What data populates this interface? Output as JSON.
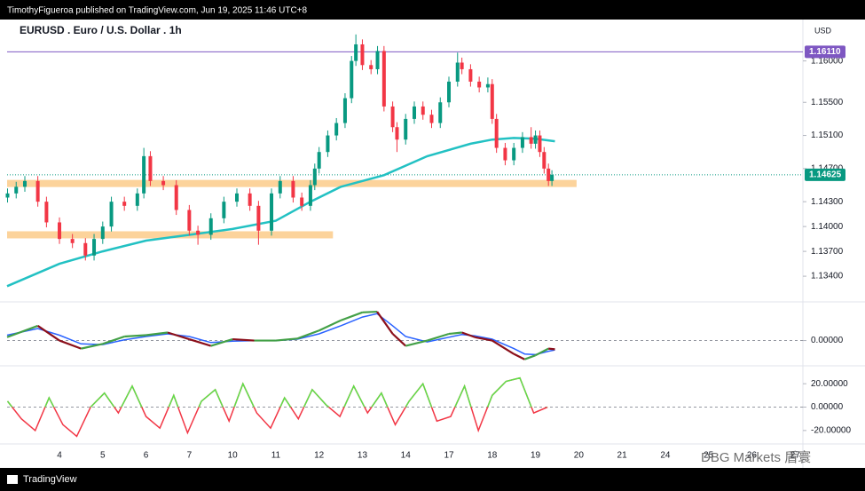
{
  "header": "TimothyFigueroa published on TradingView.com, Jun 19, 2025 11:46 UTC+8",
  "footer": "TradingView",
  "watermark": "DBG Markets 盾寰",
  "chart_data": [
    {
      "type": "candlestick",
      "title": "EURUSD . Euro / U.S. Dollar . 1h",
      "currency": "USD",
      "xlim": [
        -1.21,
        17.18
      ],
      "xticks": [
        {
          "value": 0,
          "label": "4"
        },
        {
          "value": 1,
          "label": "5"
        },
        {
          "value": 2,
          "label": "6"
        },
        {
          "value": 3,
          "label": "7"
        },
        {
          "value": 4,
          "label": "10"
        },
        {
          "value": 5,
          "label": "11"
        },
        {
          "value": 6,
          "label": "12"
        },
        {
          "value": 7,
          "label": "13"
        },
        {
          "value": 8,
          "label": "14"
        },
        {
          "value": 9,
          "label": "17"
        },
        {
          "value": 10,
          "label": "18"
        },
        {
          "value": 11,
          "label": "19"
        },
        {
          "value": 12,
          "label": "20"
        },
        {
          "value": 13,
          "label": "21"
        },
        {
          "value": 14,
          "label": "24"
        },
        {
          "value": 15,
          "label": "25"
        },
        {
          "value": 16,
          "label": "26"
        },
        {
          "value": 17,
          "label": "27"
        }
      ],
      "ylim": [
        1.1309,
        1.165
      ],
      "yticks": [
        {
          "value": 1.16,
          "label": "1.16000"
        },
        {
          "value": 1.155,
          "label": "1.15500"
        },
        {
          "value": 1.151,
          "label": "1.15100"
        },
        {
          "value": 1.147,
          "label": "1.14700"
        },
        {
          "value": 1.143,
          "label": "1.14300"
        },
        {
          "value": 1.14,
          "label": "1.14000"
        },
        {
          "value": 1.137,
          "label": "1.13700"
        },
        {
          "value": 1.134,
          "label": "1.13400"
        }
      ],
      "up_color": "#089981",
      "down_color": "#f23645",
      "x": [
        -1.2,
        -1.0,
        -0.8,
        -0.5,
        -0.3,
        0.0,
        0.3,
        0.6,
        0.8,
        1.0,
        1.2,
        1.5,
        1.8,
        1.95,
        2.1,
        2.4,
        2.7,
        3.0,
        3.2,
        3.5,
        3.8,
        4.1,
        4.4,
        4.6,
        4.9,
        5.1,
        5.4,
        5.6,
        5.8,
        5.9,
        6.0,
        6.2,
        6.4,
        6.6,
        6.75,
        6.85,
        7.0,
        7.2,
        7.35,
        7.5,
        7.7,
        7.8,
        8.0,
        8.2,
        8.4,
        8.6,
        8.8,
        9.0,
        9.2,
        9.3,
        9.5,
        9.7,
        9.9,
        10.0,
        10.1,
        10.3,
        10.5,
        10.7,
        10.9,
        11.0,
        11.1,
        11.2,
        11.3,
        11.38
      ],
      "open": [
        1.1435,
        1.144,
        1.1448,
        1.1455,
        1.143,
        1.1405,
        1.1385,
        1.138,
        1.1365,
        1.1385,
        1.14,
        1.143,
        1.1425,
        1.144,
        1.1485,
        1.1455,
        1.145,
        1.142,
        1.1395,
        1.139,
        1.141,
        1.143,
        1.144,
        1.1425,
        1.1395,
        1.144,
        1.1455,
        1.1435,
        1.1425,
        1.145,
        1.147,
        1.149,
        1.151,
        1.1525,
        1.1555,
        1.16,
        1.162,
        1.1595,
        1.159,
        1.1612,
        1.1545,
        1.152,
        1.1505,
        1.153,
        1.1545,
        1.1535,
        1.1525,
        1.155,
        1.1575,
        1.1598,
        1.159,
        1.1575,
        1.1568,
        1.1572,
        1.153,
        1.1495,
        1.148,
        1.1495,
        1.1508,
        1.15,
        1.151,
        1.149,
        1.147,
        1.1455
      ],
      "high": [
        1.1446,
        1.1454,
        1.1461,
        1.1461,
        1.1436,
        1.1411,
        1.1391,
        1.1386,
        1.1391,
        1.1406,
        1.1436,
        1.1436,
        1.1446,
        1.1495,
        1.1491,
        1.1461,
        1.1456,
        1.1426,
        1.1401,
        1.1416,
        1.1436,
        1.1446,
        1.1446,
        1.1431,
        1.1446,
        1.1461,
        1.1461,
        1.1441,
        1.1456,
        1.1476,
        1.1496,
        1.1516,
        1.1531,
        1.1561,
        1.1606,
        1.1632,
        1.1626,
        1.1601,
        1.1618,
        1.1618,
        1.1551,
        1.1526,
        1.1536,
        1.1551,
        1.1551,
        1.1541,
        1.1556,
        1.1581,
        1.161,
        1.1604,
        1.1596,
        1.1581,
        1.158,
        1.1578,
        1.1536,
        1.1501,
        1.1501,
        1.1514,
        1.152,
        1.1516,
        1.1516,
        1.1496,
        1.1476,
        1.1468
      ],
      "low": [
        1.1429,
        1.1434,
        1.1442,
        1.1424,
        1.1399,
        1.1379,
        1.1374,
        1.1359,
        1.1359,
        1.1379,
        1.1394,
        1.1419,
        1.1419,
        1.1434,
        1.1449,
        1.1444,
        1.1414,
        1.1389,
        1.1378,
        1.1384,
        1.1404,
        1.1424,
        1.1419,
        1.1378,
        1.1389,
        1.1434,
        1.1429,
        1.1419,
        1.1419,
        1.1444,
        1.1464,
        1.1484,
        1.1504,
        1.1519,
        1.1549,
        1.1594,
        1.1589,
        1.1584,
        1.1584,
        1.1539,
        1.1514,
        1.149,
        1.1499,
        1.1524,
        1.1529,
        1.1519,
        1.1519,
        1.1544,
        1.1569,
        1.1584,
        1.1569,
        1.1562,
        1.1562,
        1.1524,
        1.1489,
        1.1474,
        1.1474,
        1.1489,
        1.1494,
        1.1494,
        1.1484,
        1.1464,
        1.1449,
        1.1449
      ],
      "close": [
        1.144,
        1.1448,
        1.1455,
        1.143,
        1.1405,
        1.1385,
        1.138,
        1.1365,
        1.1385,
        1.14,
        1.143,
        1.1425,
        1.144,
        1.1485,
        1.1455,
        1.145,
        1.142,
        1.1395,
        1.139,
        1.141,
        1.143,
        1.144,
        1.1425,
        1.1395,
        1.144,
        1.1455,
        1.1435,
        1.1425,
        1.145,
        1.147,
        1.149,
        1.151,
        1.1525,
        1.1555,
        1.16,
        1.162,
        1.1595,
        1.159,
        1.1612,
        1.1545,
        1.152,
        1.1505,
        1.153,
        1.1545,
        1.1535,
        1.1525,
        1.155,
        1.1575,
        1.1598,
        1.159,
        1.1575,
        1.1568,
        1.1572,
        1.153,
        1.1495,
        1.148,
        1.1495,
        1.1508,
        1.15,
        1.151,
        1.149,
        1.147,
        1.1455,
        1.14625
      ],
      "ema": {
        "color": "#22c1c3",
        "x": [
          -1.21,
          0,
          1,
          2,
          3,
          4,
          5,
          5.8,
          6.5,
          7.5,
          8.5,
          9.5,
          10,
          10.5,
          11,
          11.45
        ],
        "values": [
          1.1328,
          1.1355,
          1.137,
          1.1383,
          1.139,
          1.1397,
          1.1407,
          1.143,
          1.1448,
          1.1462,
          1.1485,
          1.15,
          1.1505,
          1.1507,
          1.1506,
          1.1503
        ]
      },
      "zones": [
        {
          "value": 1.1452,
          "end": 11.95
        },
        {
          "value": 1.139,
          "end": 6.32
        }
      ],
      "zone_color": "#fcd39b",
      "price_line": {
        "value": 1.1611,
        "label": "1.16110",
        "color": "#7e57c2"
      },
      "last_price": {
        "value": 1.14625,
        "label": "1.14625",
        "color": "#089981"
      }
    },
    {
      "type": "line",
      "ylim": [
        -0.0035,
        0.0055
      ],
      "yticks": [
        {
          "value": 0,
          "label": "0.00000"
        }
      ],
      "x": [
        -1.21,
        -0.5,
        0,
        0.5,
        1,
        1.5,
        2,
        2.5,
        3,
        3.5,
        4,
        4.5,
        5,
        5.5,
        6,
        6.5,
        7,
        7.34,
        7.7,
        8,
        8.5,
        9,
        9.3,
        9.6,
        10,
        10.5,
        10.75,
        11,
        11.3,
        11.45
      ],
      "series": [
        {
          "color": "#2962ff",
          "values": [
            0.0008,
            0.0018,
            0.0008,
            -0.0005,
            -0.0006,
            0.0001,
            0.0006,
            0.001,
            0.0006,
            -0.0003,
            -0.0001,
            0.0,
            0.0,
            0.0002,
            0.001,
            0.0022,
            0.0035,
            0.004,
            0.0022,
            0.0006,
            -0.0002,
            0.0005,
            0.0009,
            0.0007,
            0.0002,
            -0.0012,
            -0.002,
            -0.0021,
            -0.0016,
            -0.0014
          ]
        },
        {
          "color": "#43a047",
          "down_color": "#8b0f1a",
          "values": [
            0.0005,
            0.0022,
            0.0,
            -0.0012,
            -0.0005,
            0.0006,
            0.0008,
            0.0012,
            0.0002,
            -0.0008,
            0.0002,
            0.0,
            0.0,
            0.0003,
            0.0015,
            0.003,
            0.0042,
            0.0043,
            0.001,
            -0.0008,
            0.0,
            0.001,
            0.0012,
            0.0005,
            0.0,
            -0.002,
            -0.0028,
            -0.0022,
            -0.0012,
            -0.0013
          ]
        }
      ]
    },
    {
      "type": "line",
      "ylim": [
        -31.5,
        33.8
      ],
      "yticks": [
        {
          "value": 20,
          "label": "20.00000"
        },
        {
          "value": 0,
          "label": "0.00000"
        },
        {
          "value": -20,
          "label": "-20.00000"
        }
      ],
      "x": [
        -1.2,
        -0.88,
        -0.56,
        -0.24,
        0.08,
        0.4,
        0.72,
        1.04,
        1.36,
        1.68,
        2.0,
        2.32,
        2.64,
        2.96,
        3.28,
        3.6,
        3.92,
        4.24,
        4.56,
        4.88,
        5.2,
        5.52,
        5.84,
        6.16,
        6.48,
        6.8,
        7.12,
        7.44,
        7.76,
        8.08,
        8.4,
        8.72,
        9.04,
        9.36,
        9.68,
        10.0,
        10.32,
        10.64,
        10.96,
        11.28
      ],
      "series": [
        {
          "color": "#f23645",
          "up_color": "#5ee04a",
          "values": [
            5,
            -10,
            -20,
            8,
            -15,
            -25,
            0,
            12,
            -5,
            18,
            -8,
            -18,
            10,
            -22,
            5,
            15,
            -12,
            20,
            -5,
            -18,
            8,
            -10,
            15,
            2,
            -8,
            18,
            -5,
            12,
            -15,
            5,
            20,
            -12,
            -8,
            18,
            -20,
            10,
            22,
            25,
            -5,
            0
          ]
        }
      ]
    }
  ]
}
